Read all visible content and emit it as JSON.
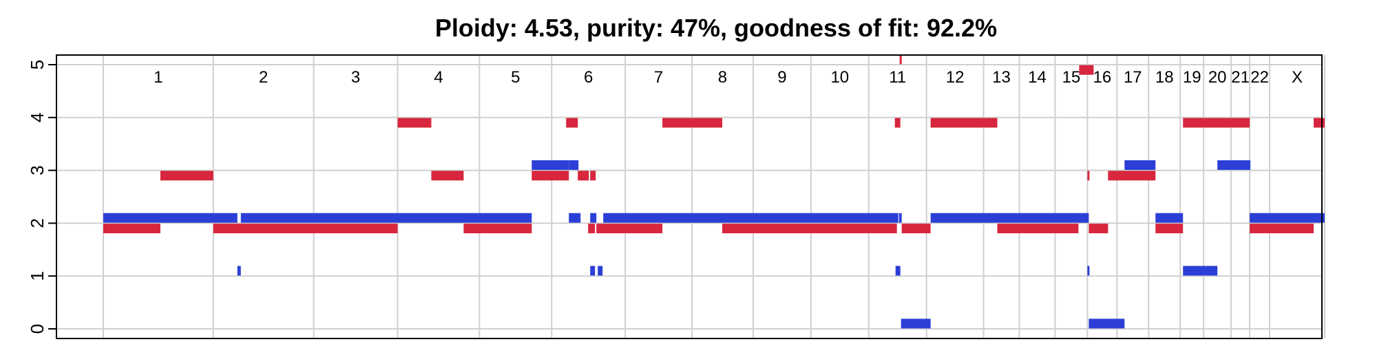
{
  "chart_data": {
    "type": "copy-number-segments",
    "title": "Ploidy: 4.53, purity: 47%, goodness of fit: 92.2%",
    "ylim": [
      0,
      5
    ],
    "yticks": [
      "0",
      "1",
      "2",
      "3",
      "4",
      "5"
    ],
    "grid": true,
    "genome_span": [
      0,
      2000
    ],
    "chromosomes": [
      {
        "name": "1",
        "end": 160
      },
      {
        "name": "2",
        "end": 306
      },
      {
        "name": "3",
        "end": 428
      },
      {
        "name": "4",
        "end": 547
      },
      {
        "name": "5",
        "end": 652
      },
      {
        "name": "6",
        "end": 759
      },
      {
        "name": "7",
        "end": 856
      },
      {
        "name": "8",
        "end": 945
      },
      {
        "name": "9",
        "end": 1029
      },
      {
        "name": "10",
        "end": 1113
      },
      {
        "name": "11",
        "end": 1197
      },
      {
        "name": "12",
        "end": 1280
      },
      {
        "name": "13",
        "end": 1332
      },
      {
        "name": "14",
        "end": 1384
      },
      {
        "name": "15",
        "end": 1431
      },
      {
        "name": "16",
        "end": 1474
      },
      {
        "name": "17",
        "end": 1520
      },
      {
        "name": "18",
        "end": 1566
      },
      {
        "name": "19",
        "end": 1600
      },
      {
        "name": "20",
        "end": 1640
      },
      {
        "name": "21",
        "end": 1667
      },
      {
        "name": "22",
        "end": 1696
      },
      {
        "name": "X",
        "end": 1776
      }
    ],
    "series": [
      {
        "name": "",
        "color": "#2b3fd6",
        "segments": [
          {
            "start": 0,
            "end": 195,
            "cn": 2.1
          },
          {
            "start": 200,
            "end": 623,
            "cn": 2.1
          },
          {
            "start": 195,
            "end": 200,
            "cn": 1.1
          },
          {
            "start": 623,
            "end": 677,
            "cn": 3.1
          },
          {
            "start": 677,
            "end": 691,
            "cn": 3.1
          },
          {
            "start": 677,
            "end": 694,
            "cn": 2.1
          },
          {
            "start": 708,
            "end": 717,
            "cn": 2.1
          },
          {
            "start": 708,
            "end": 715,
            "cn": 1.1
          },
          {
            "start": 719,
            "end": 726,
            "cn": 1.1
          },
          {
            "start": 727,
            "end": 1156,
            "cn": 2.1
          },
          {
            "start": 1157,
            "end": 1161,
            "cn": 2.1
          },
          {
            "start": 1152,
            "end": 1159,
            "cn": 1.1
          },
          {
            "start": 1160,
            "end": 1203,
            "cn": 0.1
          },
          {
            "start": 1203,
            "end": 1433,
            "cn": 2.1
          },
          {
            "start": 1431,
            "end": 1434,
            "cn": 1.1
          },
          {
            "start": 1433,
            "end": 1485,
            "cn": 0.1
          },
          {
            "start": 1485,
            "end": 1530,
            "cn": 3.1
          },
          {
            "start": 1530,
            "end": 1570,
            "cn": 2.1
          },
          {
            "start": 1570,
            "end": 1620,
            "cn": 1.1
          },
          {
            "start": 1620,
            "end": 1668,
            "cn": 3.1
          },
          {
            "start": 1667,
            "end": 1776,
            "cn": 2.1
          }
        ]
      },
      {
        "name": "",
        "color": "#d7263d",
        "segments": [
          {
            "start": 0,
            "end": 83,
            "cn": 1.9
          },
          {
            "start": 83,
            "end": 160,
            "cn": 2.9
          },
          {
            "start": 160,
            "end": 428,
            "cn": 1.9
          },
          {
            "start": 428,
            "end": 477,
            "cn": 3.9
          },
          {
            "start": 477,
            "end": 524,
            "cn": 2.9
          },
          {
            "start": 524,
            "end": 623,
            "cn": 1.9
          },
          {
            "start": 623,
            "end": 677,
            "cn": 2.9
          },
          {
            "start": 673,
            "end": 690,
            "cn": 3.9
          },
          {
            "start": 690,
            "end": 706,
            "cn": 2.9
          },
          {
            "start": 708,
            "end": 716,
            "cn": 2.9
          },
          {
            "start": 705,
            "end": 715,
            "cn": 1.9
          },
          {
            "start": 717,
            "end": 813,
            "cn": 1.9
          },
          {
            "start": 813,
            "end": 900,
            "cn": 3.9
          },
          {
            "start": 900,
            "end": 1154,
            "cn": 1.9
          },
          {
            "start": 1151,
            "end": 1159,
            "cn": 3.9
          },
          {
            "start": 1158,
            "end": 1161,
            "cn": 5.1
          },
          {
            "start": 1161,
            "end": 1203,
            "cn": 1.9
          },
          {
            "start": 1203,
            "end": 1300,
            "cn": 3.9
          },
          {
            "start": 1300,
            "end": 1418,
            "cn": 1.9
          },
          {
            "start": 1419,
            "end": 1440,
            "cn": 4.9
          },
          {
            "start": 1431,
            "end": 1434,
            "cn": 2.9
          },
          {
            "start": 1433,
            "end": 1461,
            "cn": 1.9
          },
          {
            "start": 1461,
            "end": 1530,
            "cn": 2.9
          },
          {
            "start": 1530,
            "end": 1570,
            "cn": 1.9
          },
          {
            "start": 1570,
            "end": 1667,
            "cn": 3.9
          },
          {
            "start": 1667,
            "end": 1760,
            "cn": 1.9
          },
          {
            "start": 1760,
            "end": 1776,
            "cn": 3.9
          }
        ]
      }
    ]
  }
}
